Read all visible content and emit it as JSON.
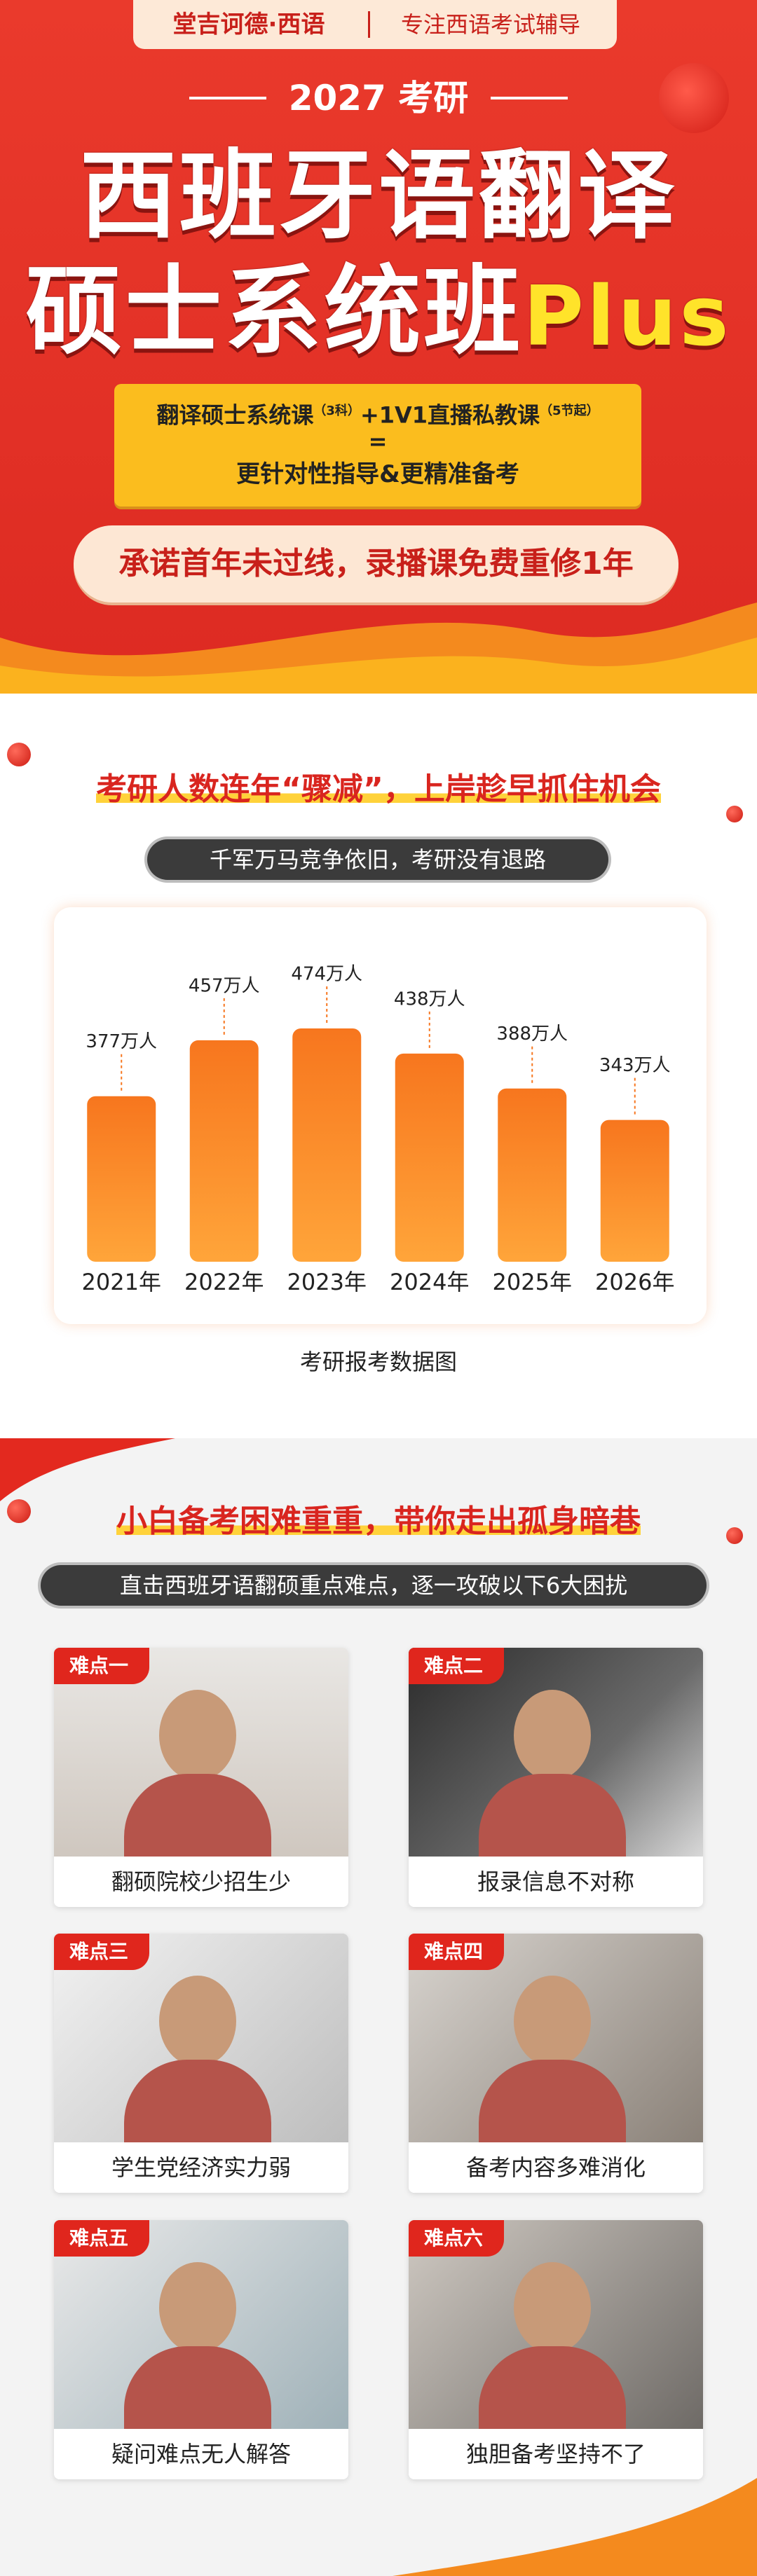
{
  "header": {
    "brand": "堂吉诃德·西语",
    "slogan": "专注西语考试辅导",
    "year_label": "2027 考研",
    "title_line1": "西班牙语翻译",
    "title_line2": "硕士系统班",
    "title_plus": "Plus",
    "offer": {
      "course1": "翻译硕士系统课",
      "course1_note": "（3科）",
      "course2": "+1V1直播私教课",
      "course2_note": "（5节起）",
      "equals": "=",
      "benefit": "更针对性指导&更精准备考"
    },
    "promise": "承诺首年未过线，录播课免费重修1年"
  },
  "trend": {
    "heading": "考研人数连年“骤减”，上岸趁早抓住机会",
    "subheading": "千军万马竞争依旧，考研没有退路"
  },
  "chart_data": {
    "type": "bar",
    "title": "考研报考数据图",
    "categories": [
      "2021年",
      "2022年",
      "2023年",
      "2024年",
      "2025年",
      "2026年"
    ],
    "values": [
      377,
      457,
      474,
      438,
      388,
      343
    ],
    "value_labels": [
      "377万人",
      "457万人",
      "474万人",
      "438万人",
      "388万人",
      "343万人"
    ],
    "color": "#f7761e",
    "ylim": [
      140,
      480
    ]
  },
  "difficulties": {
    "heading": "小白备考困难重重，带你走出孤身暗巷",
    "subheading": "直击西班牙语翻硕重点难点，逐一攻破以下6大困扰",
    "cards": [
      {
        "tag": "难点一",
        "caption": "翻硕院校少招生少"
      },
      {
        "tag": "难点二",
        "caption": "报录信息不对称"
      },
      {
        "tag": "难点三",
        "caption": "学生党经济实力弱"
      },
      {
        "tag": "难点四",
        "caption": "备考内容多难消化"
      },
      {
        "tag": "难点五",
        "caption": "疑问难点无人解答"
      },
      {
        "tag": "难点六",
        "caption": "独胆备考坚持不了"
      }
    ]
  }
}
